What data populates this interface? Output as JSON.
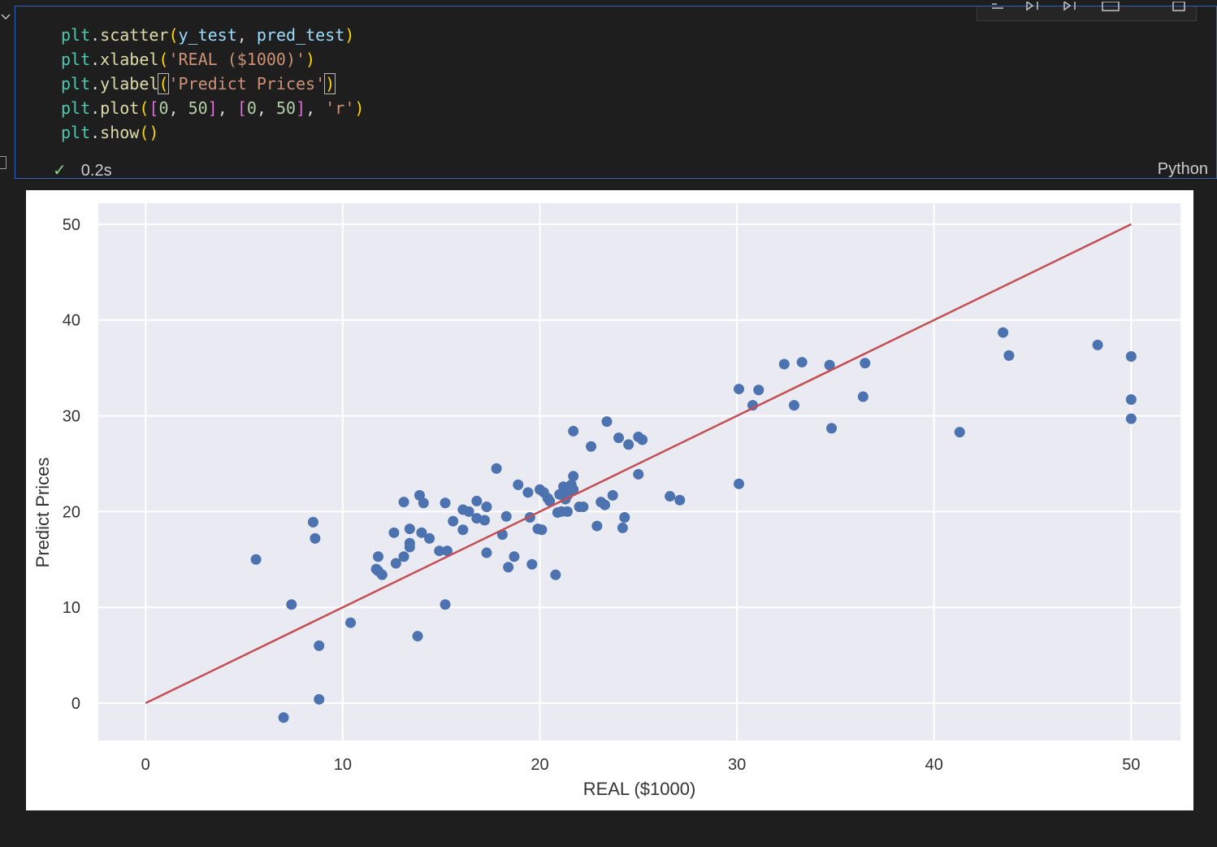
{
  "cell": {
    "code_lines": [
      [
        {
          "t": "plt",
          "c": "obj"
        },
        {
          "t": ".",
          "c": "punct"
        },
        {
          "t": "scatter",
          "c": "fn"
        },
        {
          "t": "(",
          "c": "p1"
        },
        {
          "t": "y_test",
          "c": "var"
        },
        {
          "t": ", ",
          "c": "punct"
        },
        {
          "t": "pred_test",
          "c": "var"
        },
        {
          "t": ")",
          "c": "p1"
        }
      ],
      [
        {
          "t": "plt",
          "c": "obj"
        },
        {
          "t": ".",
          "c": "punct"
        },
        {
          "t": "xlabel",
          "c": "fn"
        },
        {
          "t": "(",
          "c": "p1"
        },
        {
          "t": "'REAL ($1000)'",
          "c": "str"
        },
        {
          "t": ")",
          "c": "p1"
        }
      ],
      [
        {
          "t": "plt",
          "c": "obj"
        },
        {
          "t": ".",
          "c": "punct"
        },
        {
          "t": "ylabel",
          "c": "fn"
        },
        {
          "t": "(",
          "c": "p1",
          "box": true
        },
        {
          "t": "'Predict Prices'",
          "c": "str"
        },
        {
          "t": ")",
          "c": "p1",
          "box": true
        }
      ],
      [
        {
          "t": "plt",
          "c": "obj"
        },
        {
          "t": ".",
          "c": "punct"
        },
        {
          "t": "plot",
          "c": "fn"
        },
        {
          "t": "(",
          "c": "p1"
        },
        {
          "t": "[",
          "c": "p2"
        },
        {
          "t": "0",
          "c": "num"
        },
        {
          "t": ", ",
          "c": "punct"
        },
        {
          "t": "50",
          "c": "num"
        },
        {
          "t": "]",
          "c": "p2"
        },
        {
          "t": ", ",
          "c": "punct"
        },
        {
          "t": "[",
          "c": "p2"
        },
        {
          "t": "0",
          "c": "num"
        },
        {
          "t": ", ",
          "c": "punct"
        },
        {
          "t": "50",
          "c": "num"
        },
        {
          "t": "]",
          "c": "p2"
        },
        {
          "t": ", ",
          "c": "punct"
        },
        {
          "t": "'r'",
          "c": "str"
        },
        {
          "t": ")",
          "c": "p1"
        }
      ],
      [
        {
          "t": "plt",
          "c": "obj"
        },
        {
          "t": ".",
          "c": "punct"
        },
        {
          "t": "show",
          "c": "fn"
        },
        {
          "t": "()",
          "c": "p1"
        }
      ]
    ],
    "status_icon": "check-icon",
    "exec_time": "0.2s",
    "language": "Python",
    "toolbar_icons": [
      "run-by-line-icon",
      "execute-above-icon",
      "execute-below-icon",
      "split-cell-icon",
      "delete-cell-icon"
    ]
  },
  "chart_data": {
    "type": "scatter",
    "xlabel": "REAL ($1000)",
    "ylabel": "Predict Prices",
    "xlim": [
      -2.4,
      52.5
    ],
    "ylim": [
      -3.9,
      52.2
    ],
    "xticks": [
      0,
      10,
      20,
      30,
      40,
      50
    ],
    "yticks": [
      0,
      10,
      20,
      30,
      40,
      50
    ],
    "grid": true,
    "background": "#eaeaf2",
    "point_color": "#4c72b0",
    "line_color": "#c44e52",
    "reference_line": {
      "x": [
        0,
        50
      ],
      "y": [
        0,
        50
      ]
    },
    "points": [
      [
        5.6,
        15.0
      ],
      [
        7.0,
        -1.5
      ],
      [
        7.4,
        10.3
      ],
      [
        8.5,
        18.9
      ],
      [
        8.6,
        17.2
      ],
      [
        8.8,
        6.0
      ],
      [
        8.8,
        0.4
      ],
      [
        10.4,
        8.4
      ],
      [
        11.7,
        14.0
      ],
      [
        11.8,
        15.3
      ],
      [
        11.8,
        13.8
      ],
      [
        12.0,
        13.4
      ],
      [
        12.6,
        17.8
      ],
      [
        12.7,
        14.6
      ],
      [
        13.1,
        15.3
      ],
      [
        13.1,
        21.0
      ],
      [
        13.4,
        18.2
      ],
      [
        13.4,
        16.7
      ],
      [
        13.4,
        16.3
      ],
      [
        13.8,
        7.0
      ],
      [
        13.9,
        21.7
      ],
      [
        14.0,
        17.8
      ],
      [
        14.1,
        20.9
      ],
      [
        14.4,
        17.2
      ],
      [
        14.9,
        15.9
      ],
      [
        15.2,
        20.9
      ],
      [
        15.2,
        10.3
      ],
      [
        15.3,
        15.9
      ],
      [
        15.6,
        19.0
      ],
      [
        16.1,
        18.1
      ],
      [
        16.1,
        20.2
      ],
      [
        16.4,
        20.0
      ],
      [
        16.8,
        21.1
      ],
      [
        16.8,
        19.3
      ],
      [
        17.2,
        19.1
      ],
      [
        17.3,
        15.7
      ],
      [
        17.3,
        20.5
      ],
      [
        17.8,
        24.5
      ],
      [
        18.1,
        17.6
      ],
      [
        18.3,
        19.5
      ],
      [
        18.4,
        14.2
      ],
      [
        18.7,
        15.3
      ],
      [
        18.9,
        22.8
      ],
      [
        19.4,
        22.0
      ],
      [
        19.5,
        19.4
      ],
      [
        19.6,
        14.5
      ],
      [
        19.9,
        18.2
      ],
      [
        20.0,
        22.3
      ],
      [
        20.1,
        18.1
      ],
      [
        20.2,
        22.0
      ],
      [
        20.4,
        21.4
      ],
      [
        20.5,
        21.1
      ],
      [
        20.8,
        13.4
      ],
      [
        20.9,
        19.9
      ],
      [
        21.0,
        21.8
      ],
      [
        21.1,
        20.0
      ],
      [
        21.2,
        22.6
      ],
      [
        21.3,
        21.3
      ],
      [
        21.4,
        21.7
      ],
      [
        21.4,
        20.0
      ],
      [
        21.6,
        22.8
      ],
      [
        21.7,
        23.7
      ],
      [
        21.7,
        22.3
      ],
      [
        21.7,
        28.4
      ],
      [
        22.0,
        20.5
      ],
      [
        22.2,
        20.5
      ],
      [
        22.6,
        26.8
      ],
      [
        22.9,
        18.5
      ],
      [
        23.1,
        21.0
      ],
      [
        23.3,
        20.7
      ],
      [
        23.4,
        29.4
      ],
      [
        23.7,
        21.7
      ],
      [
        24.0,
        27.7
      ],
      [
        24.2,
        18.3
      ],
      [
        24.3,
        19.4
      ],
      [
        24.5,
        27.0
      ],
      [
        25.0,
        23.9
      ],
      [
        25.0,
        27.8
      ],
      [
        25.2,
        27.5
      ],
      [
        26.6,
        21.6
      ],
      [
        27.1,
        21.2
      ],
      [
        30.1,
        22.9
      ],
      [
        30.1,
        32.8
      ],
      [
        30.8,
        31.1
      ],
      [
        31.1,
        32.7
      ],
      [
        32.4,
        35.4
      ],
      [
        32.9,
        31.1
      ],
      [
        33.3,
        35.6
      ],
      [
        34.7,
        35.3
      ],
      [
        34.8,
        28.7
      ],
      [
        36.4,
        32.0
      ],
      [
        36.5,
        35.5
      ],
      [
        41.3,
        28.3
      ],
      [
        43.5,
        38.7
      ],
      [
        43.8,
        36.3
      ],
      [
        48.3,
        37.4
      ],
      [
        50.0,
        36.2
      ],
      [
        50.0,
        31.7
      ],
      [
        50.0,
        29.7
      ]
    ]
  }
}
